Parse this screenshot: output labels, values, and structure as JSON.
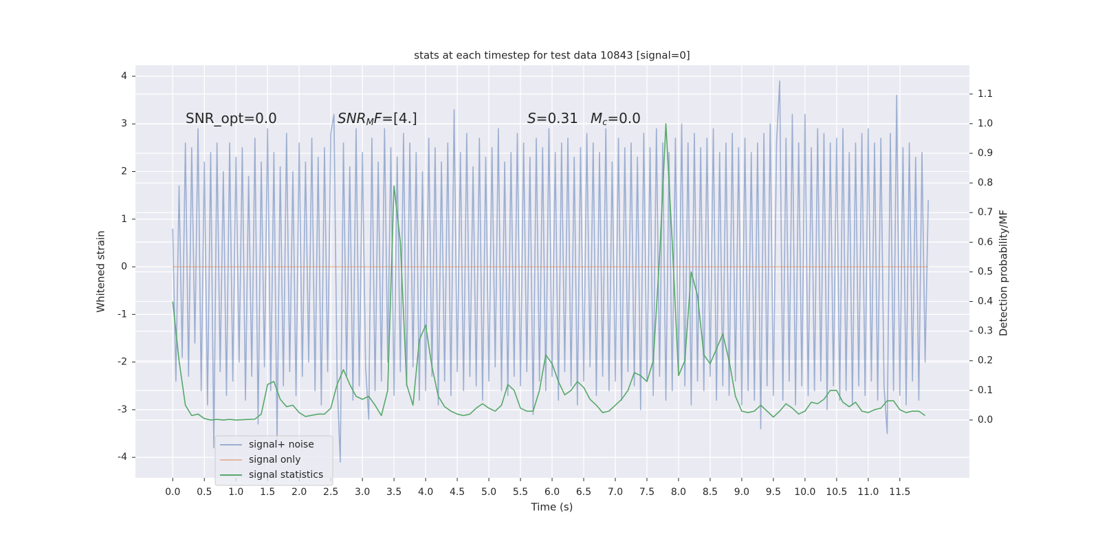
{
  "chart_data": {
    "type": "line",
    "title": "stats at each timestep for test data 10843 [signal=0]",
    "xlabel": "Time (s)",
    "ylabel": "Whitened strain",
    "y2label": "Detection probability/MF",
    "xlim": [
      -0.59,
      12.6
    ],
    "ylim": [
      -4.43,
      4.23
    ],
    "y2lim": [
      -0.195,
      1.197
    ],
    "xticks": [
      {
        "value": 0,
        "label": "0.0"
      },
      0.5,
      {
        "value": 1,
        "label": "1.0"
      },
      1.5,
      {
        "value": 2,
        "label": "2.0"
      },
      2.5,
      {
        "value": 3,
        "label": "3.0"
      },
      3.5,
      {
        "value": 4,
        "label": "4.0"
      },
      4.5,
      {
        "value": 5,
        "label": "5.0"
      },
      5.5,
      {
        "value": 6,
        "label": "6.0"
      },
      6.5,
      {
        "value": 7,
        "label": "7.0"
      },
      7.5,
      {
        "value": 8,
        "label": "8.0"
      },
      8.5,
      {
        "value": 9,
        "label": "9.0"
      },
      9.5,
      {
        "value": 10,
        "label": "10.0"
      },
      10.5,
      {
        "value": 11,
        "label": "11.0"
      },
      11.5
    ],
    "yticks": [
      -4,
      -3,
      -2,
      -1,
      0,
      1,
      2,
      3,
      4
    ],
    "y2ticks": [
      {
        "value": 0,
        "label": "0.0"
      },
      0.1,
      0.2,
      0.3,
      0.4,
      0.5,
      0.6,
      0.7,
      0.8,
      0.9,
      {
        "value": 1,
        "label": "1.0"
      },
      1.1
    ],
    "grid": true,
    "legend": "lower left",
    "annotations": [
      [
        {
          "text": "SNR_opt=0.0"
        }
      ],
      [
        {
          "text": "SNR",
          "italic": true
        },
        {
          "text": "M",
          "italic": true,
          "sub": true
        },
        {
          "text": "F",
          "italic": true
        },
        {
          "text": "=[4.]"
        }
      ],
      [
        {
          "text": "S",
          "italic": true
        },
        {
          "text": "=0.31"
        }
      ],
      [
        {
          "text": "M",
          "italic": true
        },
        {
          "text": "c",
          "italic": true,
          "sub": true
        },
        {
          "text": "=0.0"
        }
      ]
    ],
    "series": [
      {
        "name": "signal+ noise",
        "color": "#4c72b0",
        "opacity": 0.5,
        "x": [
          0,
          0.05,
          0.1,
          0.15,
          0.2,
          0.25,
          0.3,
          0.35,
          0.4,
          0.45,
          0.5,
          0.55,
          0.6,
          0.65,
          0.7,
          0.75,
          0.8,
          0.85,
          0.9,
          0.95,
          1,
          1.05,
          1.1,
          1.15,
          1.2,
          1.25,
          1.3,
          1.35,
          1.4,
          1.45,
          1.5,
          1.55,
          1.6,
          1.65,
          1.7,
          1.75,
          1.8,
          1.85,
          1.9,
          1.95,
          2,
          2.05,
          2.1,
          2.15,
          2.2,
          2.25,
          2.3,
          2.35,
          2.4,
          2.45,
          2.5,
          2.55,
          2.6,
          2.65,
          2.7,
          2.75,
          2.8,
          2.85,
          2.9,
          2.95,
          3,
          3.05,
          3.1,
          3.15,
          3.2,
          3.25,
          3.3,
          3.35,
          3.4,
          3.45,
          3.5,
          3.55,
          3.6,
          3.65,
          3.7,
          3.75,
          3.8,
          3.85,
          3.9,
          3.95,
          4,
          4.05,
          4.1,
          4.15,
          4.2,
          4.25,
          4.3,
          4.35,
          4.4,
          4.45,
          4.5,
          4.55,
          4.6,
          4.65,
          4.7,
          4.75,
          4.8,
          4.85,
          4.9,
          4.95,
          5,
          5.05,
          5.1,
          5.15,
          5.2,
          5.25,
          5.3,
          5.35,
          5.4,
          5.45,
          5.5,
          5.55,
          5.6,
          5.65,
          5.7,
          5.75,
          5.8,
          5.85,
          5.9,
          5.95,
          6,
          6.05,
          6.1,
          6.15,
          6.2,
          6.25,
          6.3,
          6.35,
          6.4,
          6.45,
          6.5,
          6.55,
          6.6,
          6.65,
          6.7,
          6.75,
          6.8,
          6.85,
          6.9,
          6.95,
          7,
          7.05,
          7.1,
          7.15,
          7.2,
          7.25,
          7.3,
          7.35,
          7.4,
          7.45,
          7.5,
          7.55,
          7.6,
          7.65,
          7.7,
          7.75,
          7.8,
          7.85,
          7.9,
          7.95,
          8,
          8.05,
          8.1,
          8.15,
          8.2,
          8.25,
          8.3,
          8.35,
          8.4,
          8.45,
          8.5,
          8.55,
          8.6,
          8.65,
          8.7,
          8.75,
          8.8,
          8.85,
          8.9,
          8.95,
          9,
          9.05,
          9.1,
          9.15,
          9.2,
          9.25,
          9.3,
          9.35,
          9.4,
          9.45,
          9.5,
          9.55,
          9.6,
          9.65,
          9.7,
          9.75,
          9.8,
          9.85,
          9.9,
          9.95,
          10,
          10.05,
          10.1,
          10.15,
          10.2,
          10.25,
          10.3,
          10.35,
          10.4,
          10.45,
          10.5,
          10.55,
          10.6,
          10.65,
          10.7,
          10.75,
          10.8,
          10.85,
          10.9,
          10.95,
          11,
          11.05,
          11.1,
          11.15,
          11.2,
          11.25,
          11.3,
          11.35,
          11.4,
          11.45,
          11.5,
          11.55,
          11.6,
          11.65,
          11.7,
          11.75,
          11.8,
          11.85,
          11.9,
          11.95
        ],
        "values": [
          0.8,
          -2.4,
          1.7,
          -1.9,
          2.6,
          -2.3,
          2.5,
          -1.6,
          2.9,
          -2.6,
          2.2,
          -2.9,
          2.4,
          -3.8,
          2.6,
          -2.2,
          2.0,
          -2.7,
          2.6,
          -2.4,
          2.3,
          -2.0,
          2.5,
          -2.8,
          1.9,
          -2.3,
          2.7,
          -3.3,
          2.2,
          -2.1,
          2.9,
          -2.6,
          2.4,
          -3.7,
          2.1,
          -2.5,
          2.8,
          -2.2,
          2.0,
          -2.7,
          2.6,
          -2.3,
          2.2,
          -2.0,
          2.7,
          -2.6,
          2.3,
          -2.9,
          2.5,
          -2.2,
          2.8,
          3.2,
          -2.4,
          -4.1,
          2.6,
          -2.3,
          2.1,
          -2.8,
          2.9,
          -2.5,
          2.4,
          -2.1,
          -3.2,
          2.7,
          -2.6,
          2.2,
          -2.4,
          2.9,
          -2.0,
          2.5,
          -2.7,
          2.3,
          -2.2,
          2.8,
          -2.5,
          2.6,
          -2.1,
          2.4,
          -2.8,
          2.0,
          -2.6,
          2.7,
          -2.3,
          2.5,
          -2.9,
          2.2,
          -2.4,
          2.6,
          -2.7,
          3.3,
          -2.2,
          2.4,
          -2.6,
          2.8,
          -2.3,
          2.1,
          -2.5,
          2.7,
          -2.8,
          2.3,
          -2.4,
          2.5,
          -2.1,
          2.9,
          -2.6,
          2.2,
          -2.7,
          2.4,
          -2.3,
          2.8,
          -2.5,
          2.6,
          -2.2,
          2.3,
          -3.1,
          2.7,
          -2.4,
          2.5,
          -2.6,
          2.9,
          -2.3,
          2.4,
          -2.8,
          2.6,
          -2.2,
          2.7,
          -2.5,
          2.3,
          -2.9,
          2.5,
          -2.4,
          2.8,
          -2.1,
          2.6,
          -2.7,
          2.4,
          -2.3,
          2.9,
          -2.6,
          2.2,
          -2.4,
          2.7,
          -2.8,
          2.5,
          -2.2,
          2.6,
          -2.5,
          2.3,
          -3.0,
          2.8,
          -2.4,
          2.5,
          -2.7,
          2.9,
          -2.3,
          2.6,
          -2.8,
          2.4,
          -2.6,
          2.7,
          -2.2,
          3.0,
          -2.5,
          2.6,
          -2.9,
          2.8,
          -2.4,
          2.5,
          -2.6,
          2.7,
          -2.3,
          2.9,
          -2.8,
          2.4,
          -2.5,
          2.6,
          -2.7,
          2.8,
          -2.4,
          2.5,
          -2.9,
          2.7,
          -2.6,
          2.4,
          -2.8,
          2.6,
          -3.4,
          2.8,
          -2.5,
          3.0,
          -2.7,
          2.6,
          3.9,
          -2.8,
          2.7,
          -2.4,
          3.2,
          -2.9,
          2.6,
          -2.5,
          3.2,
          -2.7,
          2.5,
          -2.6,
          2.9,
          -2.4,
          2.8,
          -3.0,
          2.6,
          -2.5,
          2.7,
          -2.8,
          2.9,
          -2.6,
          2.4,
          -2.9,
          2.6,
          -2.5,
          2.8,
          -2.7,
          2.9,
          -2.4,
          2.6,
          -2.8,
          2.7,
          -2.5,
          -3.5,
          2.8,
          -2.6,
          3.6,
          -2.7,
          2.5,
          -2.9,
          2.6,
          -2.4,
          2.3,
          -2.8,
          2.4,
          -2.0,
          1.4
        ]
      },
      {
        "name": "signal only",
        "color": "#dd8452",
        "opacity": 0.5,
        "x": [
          0,
          11.95
        ],
        "values": [
          0,
          0
        ]
      },
      {
        "name": "signal statistics",
        "color": "#55a868",
        "opacity": 1,
        "axis": "y2",
        "x": [
          0,
          0.1,
          0.2,
          0.3,
          0.4,
          0.5,
          0.6,
          0.7,
          0.8,
          0.9,
          1,
          1.1,
          1.2,
          1.3,
          1.4,
          1.5,
          1.6,
          1.7,
          1.8,
          1.9,
          2,
          2.1,
          2.2,
          2.3,
          2.4,
          2.5,
          2.6,
          2.7,
          2.8,
          2.9,
          3,
          3.1,
          3.2,
          3.3,
          3.4,
          3.5,
          3.6,
          3.7,
          3.8,
          3.9,
          4,
          4.1,
          4.2,
          4.3,
          4.4,
          4.5,
          4.6,
          4.7,
          4.8,
          4.9,
          5,
          5.1,
          5.2,
          5.3,
          5.4,
          5.5,
          5.6,
          5.7,
          5.8,
          5.9,
          6,
          6.1,
          6.2,
          6.3,
          6.4,
          6.5,
          6.6,
          6.7,
          6.8,
          6.9,
          7,
          7.1,
          7.2,
          7.3,
          7.4,
          7.5,
          7.6,
          7.7,
          7.8,
          7.9,
          8,
          8.1,
          8.2,
          8.3,
          8.4,
          8.5,
          8.6,
          8.7,
          8.8,
          8.9,
          9,
          9.1,
          9.2,
          9.3,
          9.4,
          9.5,
          9.6,
          9.7,
          9.8,
          9.9,
          10,
          10.1,
          10.2,
          10.3,
          10.4,
          10.5,
          10.6,
          10.7,
          10.8,
          10.9,
          11,
          11.1,
          11.2,
          11.3,
          11.4,
          11.5,
          11.6,
          11.7,
          11.8,
          11.9
        ],
        "values": [
          0.4,
          0.2,
          0.05,
          0.015,
          0.02,
          0.005,
          0,
          0.002,
          0,
          0.002,
          0,
          0.001,
          0.002,
          0.003,
          0.02,
          0.12,
          0.13,
          0.07,
          0.045,
          0.05,
          0.025,
          0.012,
          0.016,
          0.02,
          0.02,
          0.04,
          0.12,
          0.17,
          0.12,
          0.08,
          0.07,
          0.08,
          0.05,
          0.015,
          0.1,
          0.79,
          0.6,
          0.12,
          0.05,
          0.27,
          0.32,
          0.18,
          0.08,
          0.045,
          0.03,
          0.02,
          0.015,
          0.02,
          0.04,
          0.055,
          0.04,
          0.03,
          0.05,
          0.12,
          0.1,
          0.04,
          0.03,
          0.03,
          0.1,
          0.22,
          0.19,
          0.13,
          0.085,
          0.1,
          0.13,
          0.11,
          0.07,
          0.05,
          0.025,
          0.03,
          0.05,
          0.07,
          0.1,
          0.16,
          0.15,
          0.13,
          0.2,
          0.55,
          1.0,
          0.6,
          0.15,
          0.2,
          0.5,
          0.42,
          0.22,
          0.19,
          0.24,
          0.29,
          0.2,
          0.08,
          0.03,
          0.025,
          0.03,
          0.05,
          0.03,
          0.01,
          0.03,
          0.055,
          0.04,
          0.02,
          0.03,
          0.06,
          0.055,
          0.07,
          0.1,
          0.1,
          0.06,
          0.045,
          0.06,
          0.03,
          0.025,
          0.035,
          0.04,
          0.065,
          0.065,
          0.035,
          0.025,
          0.03,
          0.03,
          0.015
        ]
      }
    ]
  }
}
